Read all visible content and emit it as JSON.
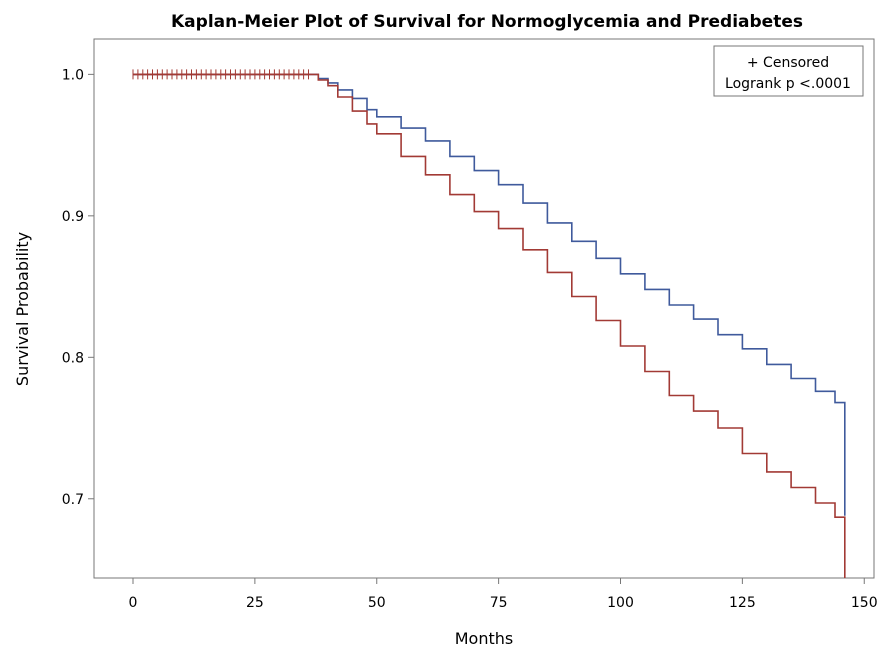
{
  "chart_data": {
    "type": "line",
    "title": "Kaplan-Meier Plot of Survival for Normoglycemia and Prediabetes",
    "xlabel": "Months",
    "ylabel": "Survival Probability",
    "xlim": [
      -8,
      152
    ],
    "ylim": [
      0.644,
      1.025
    ],
    "x_ticks": [
      0,
      25,
      50,
      75,
      100,
      125,
      150
    ],
    "y_ticks": [
      0.7,
      0.8,
      0.9,
      1.0
    ],
    "x_tick_labels": [
      "0",
      "25",
      "50",
      "75",
      "100",
      "125",
      "150"
    ],
    "y_tick_labels": [
      "0.7",
      "0.8",
      "0.9",
      "1.0"
    ],
    "grid": false,
    "legend": {
      "placement": "top-right",
      "lines": [
        "+ Censored",
        "Logrank p <.0001"
      ]
    },
    "censored_marks": {
      "x_start": 0,
      "x_end": 36,
      "step": 1,
      "y": 1.0
    },
    "series": [
      {
        "color": "#3f5a9c",
        "step": "post",
        "x": [
          0,
          36,
          38,
          40,
          42,
          45,
          48,
          50,
          55,
          60,
          65,
          70,
          75,
          80,
          85,
          90,
          95,
          100,
          105,
          110,
          115,
          120,
          125,
          130,
          135,
          140,
          144,
          146
        ],
        "y": [
          1.0,
          1.0,
          0.997,
          0.994,
          0.989,
          0.983,
          0.975,
          0.97,
          0.962,
          0.953,
          0.942,
          0.932,
          0.922,
          0.909,
          0.895,
          0.882,
          0.87,
          0.859,
          0.848,
          0.837,
          0.827,
          0.816,
          0.806,
          0.795,
          0.785,
          0.776,
          0.768,
          0.688
        ]
      },
      {
        "color": "#a23a35",
        "step": "post",
        "x": [
          0,
          36,
          38,
          40,
          42,
          45,
          48,
          50,
          55,
          60,
          65,
          70,
          75,
          80,
          85,
          90,
          95,
          100,
          105,
          110,
          115,
          120,
          125,
          130,
          135,
          140,
          144,
          146
        ],
        "y": [
          1.0,
          1.0,
          0.996,
          0.992,
          0.984,
          0.974,
          0.965,
          0.958,
          0.942,
          0.929,
          0.915,
          0.903,
          0.891,
          0.876,
          0.86,
          0.843,
          0.826,
          0.808,
          0.79,
          0.773,
          0.762,
          0.75,
          0.732,
          0.719,
          0.708,
          0.697,
          0.687,
          0.644
        ]
      }
    ]
  }
}
